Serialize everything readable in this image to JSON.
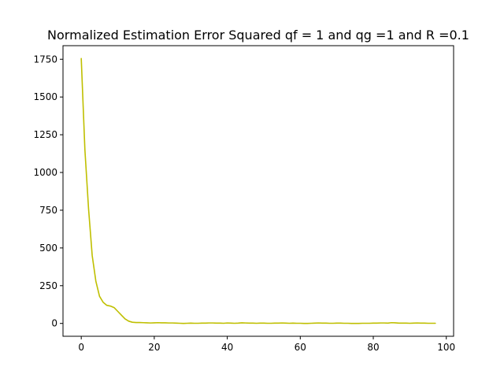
{
  "chart_data": {
    "type": "line",
    "title": "Normalized Estimation Error Squared qf = 1 and qg =1 and  R =0.1",
    "xlabel": "",
    "ylabel": "",
    "xlim": [
      -5,
      102
    ],
    "ylim": [
      -85,
      1840
    ],
    "xticks": [
      0,
      20,
      40,
      60,
      80,
      100
    ],
    "yticks": [
      0,
      250,
      500,
      750,
      1000,
      1250,
      1500,
      1750
    ],
    "grid": false,
    "series": [
      {
        "color": "#bfbf00",
        "x": [
          0,
          1,
          2,
          3,
          4,
          5,
          6,
          7,
          8,
          9,
          10,
          11,
          12,
          13,
          14,
          15,
          16,
          17,
          18,
          19,
          20,
          21,
          22,
          23,
          24,
          25,
          26,
          27,
          28,
          29,
          30,
          31,
          32,
          33,
          34,
          35,
          36,
          37,
          38,
          39,
          40,
          41,
          42,
          43,
          44,
          45,
          46,
          47,
          48,
          49,
          50,
          51,
          52,
          53,
          54,
          55,
          56,
          57,
          58,
          59,
          60,
          61,
          62,
          63,
          64,
          65,
          66,
          67,
          68,
          69,
          70,
          71,
          72,
          73,
          74,
          75,
          76,
          77,
          78,
          79,
          80,
          81,
          82,
          83,
          84,
          85,
          86,
          87,
          88,
          89,
          90,
          91,
          92,
          93,
          94,
          95,
          96,
          97
        ],
        "y": [
          1755,
          1150,
          760,
          450,
          280,
          180,
          140,
          120,
          115,
          105,
          80,
          55,
          30,
          15,
          8,
          6,
          6,
          5,
          4,
          3,
          4,
          5,
          4,
          4,
          3,
          3,
          2,
          1,
          0,
          1,
          2,
          1,
          1,
          2,
          2,
          3,
          3,
          2,
          2,
          1,
          3,
          2,
          1,
          2,
          4,
          3,
          2,
          2,
          1,
          2,
          2,
          1,
          1,
          2,
          2,
          3,
          2,
          1,
          2,
          1,
          1,
          0,
          0,
          1,
          2,
          3,
          2,
          2,
          1,
          1,
          2,
          2,
          1,
          1,
          0,
          0,
          0,
          1,
          1,
          1,
          2,
          2,
          3,
          3,
          2,
          5,
          4,
          2,
          2,
          2,
          1,
          2,
          3,
          2,
          2,
          1,
          1,
          1
        ]
      }
    ]
  }
}
